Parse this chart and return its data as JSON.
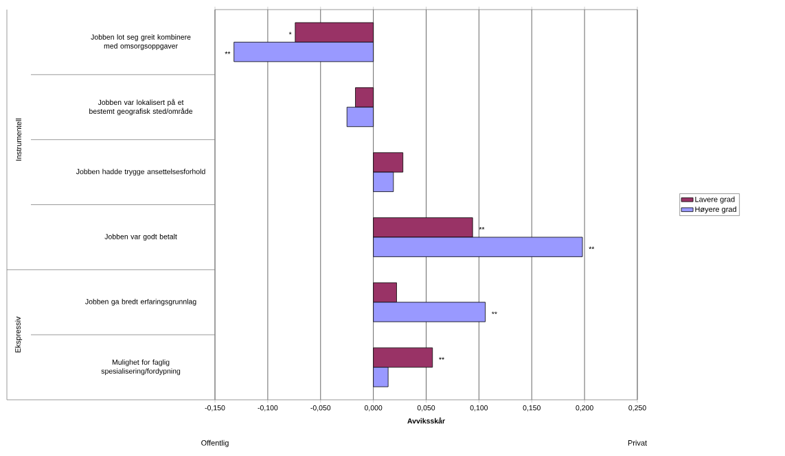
{
  "chart_data": {
    "type": "bar",
    "orientation": "horizontal",
    "xlabel": "Avviksskår",
    "categories": [
      "Jobben lot seg greit kombinere med omsorgsoppgaver",
      "Jobben var lokalisert på et bestemt geografisk sted/område",
      "Jobben hadde trygge ansettelsesforhold",
      "Jobben var godt betalt",
      "Jobben ga bredt erfaringsgrunnlag",
      "Mulighet for faglig spesialisering/fordypning"
    ],
    "series": [
      {
        "name": "Lavere grad",
        "color": "#993366",
        "values": [
          -0.074,
          -0.017,
          0.028,
          0.094,
          0.022,
          0.056
        ],
        "value_labels": [
          "*",
          null,
          null,
          "**",
          null,
          "**"
        ]
      },
      {
        "name": "Høyere grad",
        "color": "#9999ff",
        "values": [
          -0.132,
          -0.025,
          0.019,
          0.198,
          0.106,
          0.014
        ],
        "value_labels": [
          "**",
          null,
          null,
          "**",
          "**",
          null
        ]
      }
    ],
    "xlim": [
      -0.15,
      0.25
    ],
    "xticks": [
      {
        "value": -0.15,
        "label": "-0,150"
      },
      {
        "value": -0.1,
        "label": "-0,100"
      },
      {
        "value": -0.05,
        "label": "-0,050"
      },
      {
        "value": 0,
        "label": "0,000"
      },
      {
        "value": 0.05,
        "label": "0,050"
      },
      {
        "value": 0.1,
        "label": "0,100"
      },
      {
        "value": 0.15,
        "label": "0,150"
      },
      {
        "value": 0.2,
        "label": "0,200"
      },
      {
        "value": 0.25,
        "label": "0,250"
      }
    ],
    "grid": "x",
    "legend": "right",
    "annotations": [
      "Instrumentell",
      "Ekspressiv",
      "Offentlig",
      "Privat"
    ]
  }
}
